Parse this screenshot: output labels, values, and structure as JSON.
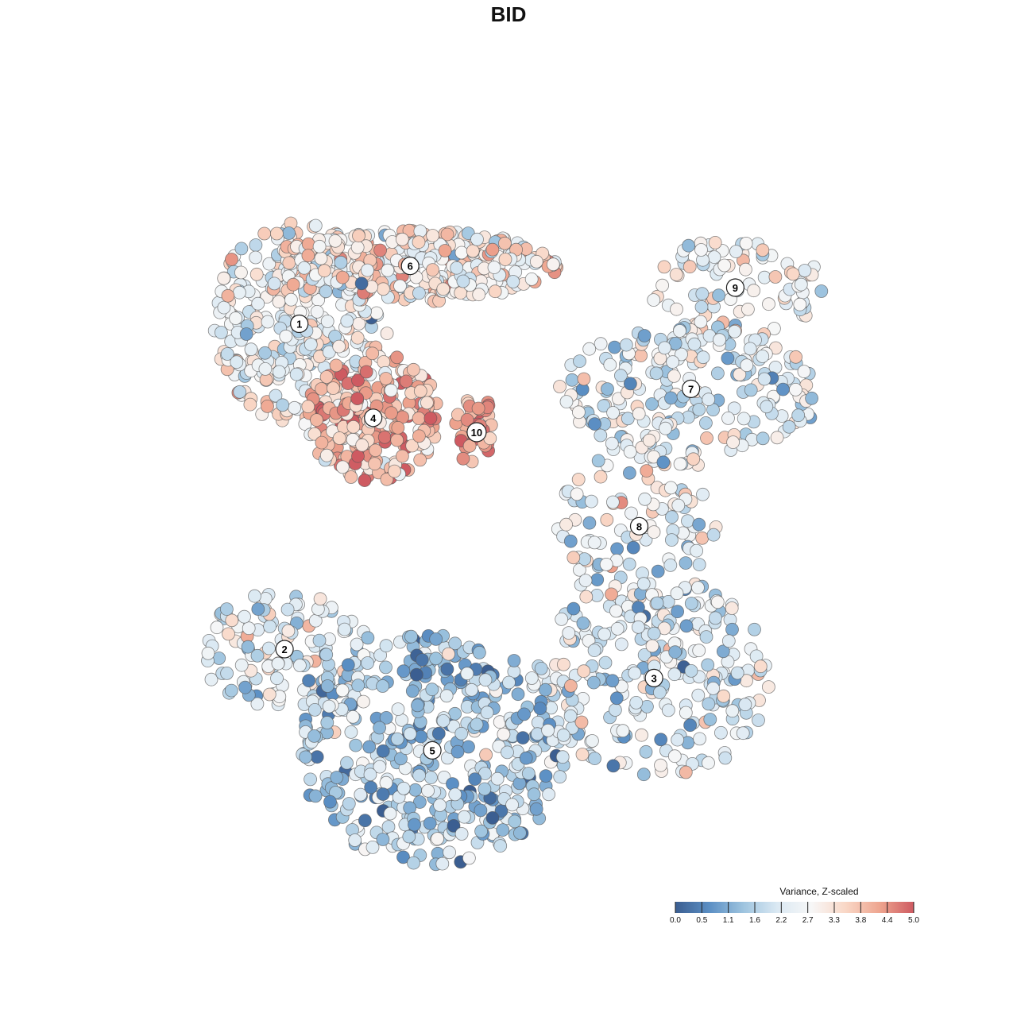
{
  "chart_data": {
    "type": "scatter",
    "title": "BID",
    "xlim": [
      0,
      100
    ],
    "ylim": [
      0,
      100
    ],
    "legend": {
      "title": "Variance, Z-scaled",
      "placement": "bottom-right",
      "ticks": [
        "0.0",
        "0.5",
        "1.1",
        "1.6",
        "2.2",
        "2.7",
        "3.3",
        "3.8",
        "4.4",
        "5.0"
      ],
      "colors": [
        "#3b5e91",
        "#5b8fc4",
        "#9ec4df",
        "#dbe9f3",
        "#f7f7f7",
        "#f9d7c6",
        "#eea58f",
        "#ce5a61"
      ],
      "range": [
        0,
        5
      ]
    },
    "clusters": [
      {
        "label": "1",
        "x": 19,
        "y": 75,
        "rx": 12,
        "ry": 14,
        "value": 2.7,
        "n": 320
      },
      {
        "label": "6",
        "x": 34,
        "y": 83,
        "rx": 20,
        "ry": 5,
        "value": 3.1,
        "n": 330
      },
      {
        "label": "4",
        "x": 29,
        "y": 62,
        "rx": 9,
        "ry": 9,
        "value": 3.9,
        "n": 220
      },
      {
        "label": "10",
        "x": 43,
        "y": 60,
        "rx": 3,
        "ry": 5,
        "value": 4.6,
        "n": 35
      },
      {
        "label": "9",
        "x": 78,
        "y": 80,
        "rx": 12,
        "ry": 7,
        "value": 2.7,
        "n": 90
      },
      {
        "label": "7",
        "x": 72,
        "y": 66,
        "rx": 18,
        "ry": 9,
        "value": 2.3,
        "n": 210
      },
      {
        "label": "8",
        "x": 65,
        "y": 47,
        "rx": 11,
        "ry": 13,
        "value": 2.6,
        "n": 120
      },
      {
        "label": "2",
        "x": 17,
        "y": 30,
        "rx": 12,
        "ry": 8,
        "value": 2.3,
        "n": 140
      },
      {
        "label": "3",
        "x": 67,
        "y": 26,
        "rx": 16,
        "ry": 14,
        "value": 2.2,
        "n": 260
      },
      {
        "label": "5",
        "x": 37,
        "y": 16,
        "rx": 18,
        "ry": 16,
        "value": 1.6,
        "n": 420
      }
    ]
  }
}
